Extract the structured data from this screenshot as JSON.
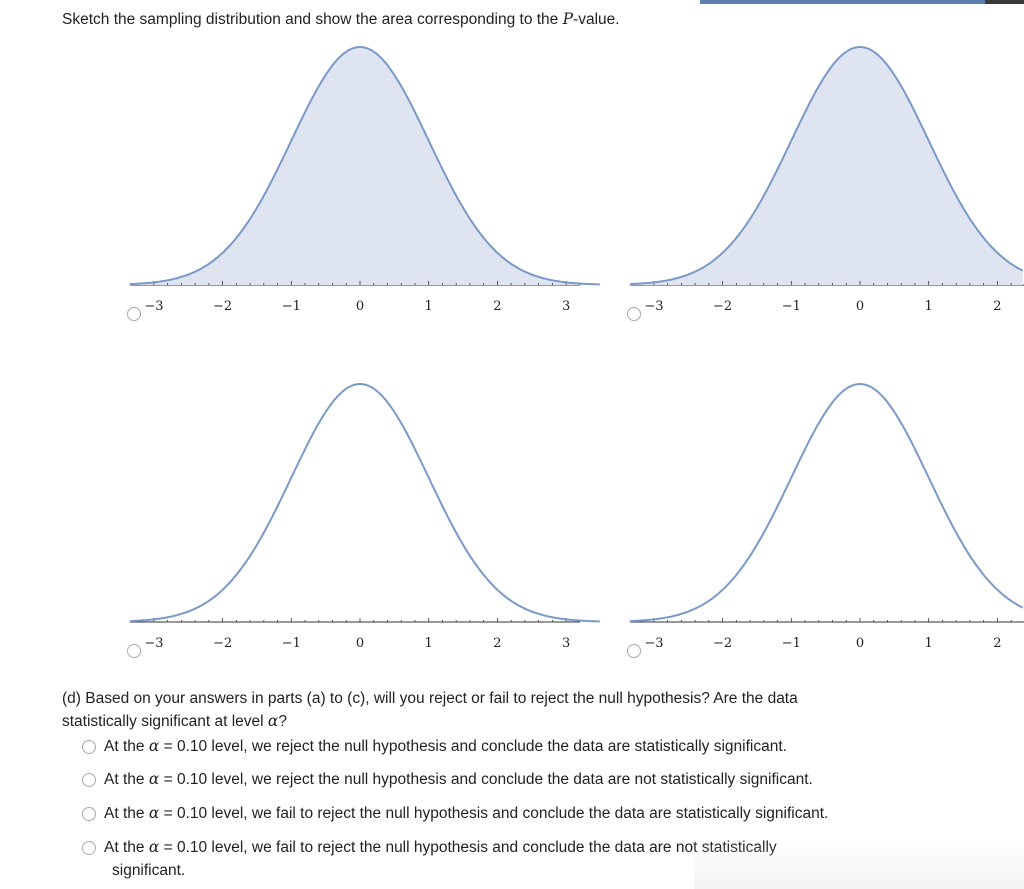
{
  "instruction": {
    "prefix": "Sketch the sampling distribution and show the area corresponding to the ",
    "p_letter": "P",
    "suffix": "-value."
  },
  "graphs": [
    {
      "id": "graph-option-1",
      "shaded": true,
      "tick_labels": [
        "-3",
        "-2",
        "-1",
        "0",
        "1",
        "2",
        "3"
      ]
    },
    {
      "id": "graph-option-2",
      "shaded": true,
      "tick_labels": [
        "-3",
        "-2",
        "-1",
        "0",
        "1",
        "2"
      ]
    },
    {
      "id": "graph-option-3",
      "shaded": false,
      "tick_labels": [
        "-3",
        "-2",
        "-1",
        "0",
        "1",
        "2",
        "3"
      ]
    },
    {
      "id": "graph-option-4",
      "shaded": false,
      "tick_labels": [
        "-3",
        "-2",
        "-1",
        "0",
        "1",
        "2"
      ]
    }
  ],
  "colors": {
    "curve": "#7b99c8",
    "fill": "#dfe5f0",
    "axis": "#333333",
    "accent_bar": "#5a7fb0"
  },
  "question": {
    "part": "(d) Based on your answers in parts (a) to (c), will you reject or fail to reject the null hypothesis? Are the data",
    "line2_prefix": "statistically significant at level ",
    "alpha": "α",
    "line2_suffix": "?"
  },
  "choices": [
    {
      "pre": "At the ",
      "alpha": "α",
      "post": " = 0.10 level, we reject the null hypothesis and conclude the data are statistically significant.",
      "cont": ""
    },
    {
      "pre": "At the ",
      "alpha": "α",
      "post": " = 0.10 level, we reject the null hypothesis and conclude the data are not statistically significant.",
      "cont": ""
    },
    {
      "pre": "At the ",
      "alpha": "α",
      "post": " = 0.10 level, we fail to reject the null hypothesis and conclude the data are statistically significant.",
      "cont": ""
    },
    {
      "pre": "At the ",
      "alpha": "α",
      "post": " = 0.10 level, we fail to reject the null hypothesis and conclude the data are not statistically",
      "cont": "significant."
    }
  ]
}
